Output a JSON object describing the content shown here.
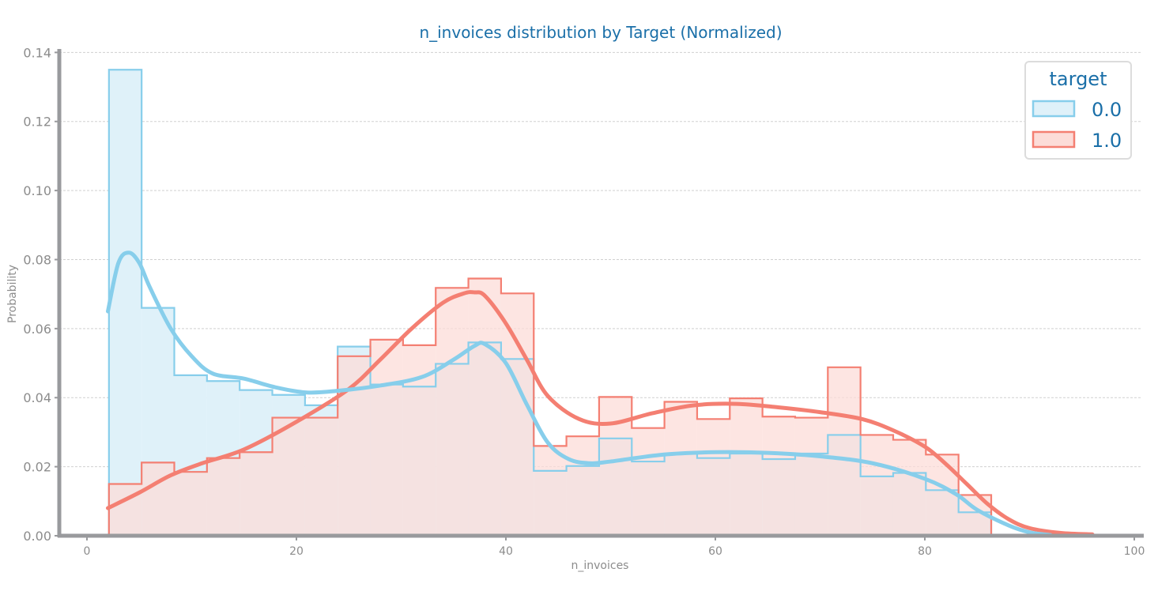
{
  "chart_data": {
    "type": "histogram",
    "title": "n_invoices distribution by Target (Normalized)",
    "xlabel": "n_invoices",
    "ylabel": "Probability",
    "xlim": [
      -2,
      100
    ],
    "ylim": [
      0,
      0.141
    ],
    "x_ticks": [
      0,
      20,
      40,
      60,
      80,
      100
    ],
    "y_ticks": [
      0.0,
      0.02,
      0.04,
      0.06,
      0.08,
      0.1,
      0.12,
      0.14
    ],
    "y_tick_labels": [
      "0.00",
      "0.02",
      "0.04",
      "0.06",
      "0.08",
      "0.10",
      "0.12",
      "0.14"
    ],
    "grid": "horizontal dashed",
    "legend": {
      "title": "target",
      "placement": "top-right"
    },
    "bin_edges": [
      2.1,
      5.22,
      8.34,
      11.46,
      14.58,
      17.7,
      20.82,
      23.94,
      27.06,
      30.18,
      33.3,
      36.42,
      39.54,
      42.66,
      45.78,
      48.9,
      52.02,
      55.14,
      58.26,
      61.38,
      64.5,
      67.62,
      70.74,
      73.86,
      76.98,
      80.1,
      83.22,
      86.34,
      89.46,
      92.58,
      95.7
    ],
    "series": [
      {
        "name": "0.0",
        "color": "#87ceeb",
        "fill": "#dff1f9",
        "values": [
          0.135,
          0.066,
          0.0465,
          0.0448,
          0.0422,
          0.0408,
          0.0378,
          0.0548,
          0.0438,
          0.0432,
          0.0498,
          0.056,
          0.0512,
          0.0188,
          0.0202,
          0.0282,
          0.0215,
          0.0238,
          0.0225,
          0.0238,
          0.0222,
          0.0238,
          0.0292,
          0.0172,
          0.0182,
          0.0132,
          0.0068,
          0.0,
          0.0,
          0.0
        ],
        "kde": {
          "x": [
            2,
            3,
            4,
            5,
            6,
            8,
            10,
            12,
            15,
            18,
            21,
            24,
            28,
            32,
            35,
            37,
            38,
            40,
            42,
            44,
            46,
            48,
            50,
            55,
            60,
            65,
            70,
            75,
            80,
            83,
            85,
            88,
            90,
            92
          ],
          "y": [
            0.065,
            0.079,
            0.082,
            0.079,
            0.072,
            0.06,
            0.052,
            0.047,
            0.0455,
            0.043,
            0.0415,
            0.042,
            0.0435,
            0.046,
            0.051,
            0.055,
            0.0555,
            0.05,
            0.038,
            0.027,
            0.0222,
            0.021,
            0.0215,
            0.0235,
            0.0242,
            0.024,
            0.023,
            0.021,
            0.0165,
            0.012,
            0.0075,
            0.003,
            0.001,
            0.0002
          ]
        }
      },
      {
        "name": "1.0",
        "color": "#f47f72",
        "fill": "#fcdcd8",
        "values": [
          0.015,
          0.0212,
          0.0185,
          0.0225,
          0.0242,
          0.0342,
          0.0342,
          0.052,
          0.0568,
          0.0552,
          0.0718,
          0.0745,
          0.0702,
          0.026,
          0.0288,
          0.0402,
          0.0312,
          0.0388,
          0.0338,
          0.0398,
          0.0345,
          0.0342,
          0.0488,
          0.0292,
          0.0278,
          0.0235,
          0.0118,
          0.0,
          0.0,
          0.0
        ],
        "kde": {
          "x": [
            2,
            5,
            8,
            11,
            15,
            20,
            25,
            28,
            31,
            34,
            36,
            37,
            38,
            40,
            42,
            44,
            47,
            50,
            54,
            58,
            62,
            66,
            70,
            74,
            77,
            80,
            82,
            84,
            86,
            88,
            90,
            93,
            96
          ],
          "y": [
            0.008,
            0.0125,
            0.0175,
            0.021,
            0.025,
            0.033,
            0.0425,
            0.051,
            0.06,
            0.0675,
            0.0702,
            0.0705,
            0.0695,
            0.0615,
            0.051,
            0.0405,
            0.0338,
            0.0325,
            0.0355,
            0.0378,
            0.0382,
            0.0372,
            0.0358,
            0.0338,
            0.0305,
            0.0258,
            0.0208,
            0.015,
            0.0092,
            0.0048,
            0.0022,
            0.0008,
            0.0004
          ]
        }
      }
    ]
  }
}
